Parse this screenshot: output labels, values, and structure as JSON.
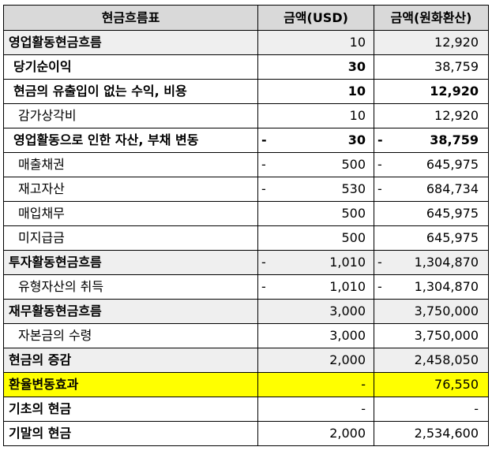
{
  "header": {
    "label": "현금흐름표",
    "usd": "금액(USD)",
    "krw": "금액(원화환산)"
  },
  "rows": [
    {
      "label": "영업활동현금흐름",
      "usd_sign": "",
      "usd": "10",
      "krw_sign": "",
      "krw": "12,920"
    },
    {
      "label": "당기순이익",
      "usd_sign": "",
      "usd": "30",
      "krw_sign": "",
      "krw": "38,759"
    },
    {
      "label": "현금의 유출입이 없는 수익, 비용",
      "usd_sign": "",
      "usd": "10",
      "krw_sign": "",
      "krw": "12,920"
    },
    {
      "label": "감가상각비",
      "usd_sign": "",
      "usd": "10",
      "krw_sign": "",
      "krw": "12,920"
    },
    {
      "label": "영업활동으로 인한 자산, 부채 변동",
      "usd_sign": "-",
      "usd": "30",
      "krw_sign": "-",
      "krw": "38,759"
    },
    {
      "label": "매출채권",
      "usd_sign": "-",
      "usd": "500",
      "krw_sign": "-",
      "krw": "645,975"
    },
    {
      "label": "재고자산",
      "usd_sign": "-",
      "usd": "530",
      "krw_sign": "-",
      "krw": "684,734"
    },
    {
      "label": "매입채무",
      "usd_sign": "",
      "usd": "500",
      "krw_sign": "",
      "krw": "645,975"
    },
    {
      "label": "미지급금",
      "usd_sign": "",
      "usd": "500",
      "krw_sign": "",
      "krw": "645,975"
    },
    {
      "label": "투자활동현금흐름",
      "usd_sign": "-",
      "usd": "1,010",
      "krw_sign": "-",
      "krw": "1,304,870"
    },
    {
      "label": "유형자산의 취득",
      "usd_sign": "-",
      "usd": "1,010",
      "krw_sign": "-",
      "krw": "1,304,870"
    },
    {
      "label": "재무활동현금흐름",
      "usd_sign": "",
      "usd": "3,000",
      "krw_sign": "",
      "krw": "3,750,000"
    },
    {
      "label": "자본금의 수령",
      "usd_sign": "",
      "usd": "3,000",
      "krw_sign": "",
      "krw": "3,750,000"
    },
    {
      "label": "현금의 증감",
      "usd_sign": "",
      "usd": "2,000",
      "krw_sign": "",
      "krw": "2,458,050"
    },
    {
      "label": "환율변동효과",
      "usd_sign": "",
      "usd": "-",
      "krw_sign": "",
      "krw": "76,550"
    },
    {
      "label": "기초의 현금",
      "usd_sign": "",
      "usd": "-",
      "krw_sign": "",
      "krw": "-"
    },
    {
      "label": "기말의 현금",
      "usd_sign": "",
      "usd": "2,000",
      "krw_sign": "",
      "krw": "2,534,600"
    }
  ],
  "colors": {
    "header_bg": "#d9d9d9",
    "section_bg": "#efefef",
    "highlight_bg": "#ffff00",
    "border": "#000000"
  }
}
